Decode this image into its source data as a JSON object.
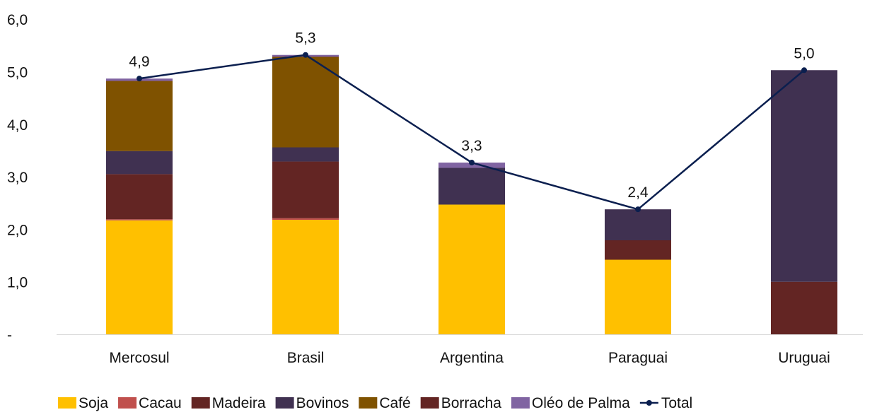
{
  "chart_data": {
    "type": "bar",
    "stacked": true,
    "categories": [
      "Mercosul",
      "Brasil",
      "Argentina",
      "Paraguai",
      "Uruguai"
    ],
    "ylim": [
      0,
      6
    ],
    "yticks": [
      {
        "value": 0,
        "label": "-"
      },
      {
        "value": 1,
        "label": "1,0"
      },
      {
        "value": 2,
        "label": "2,0"
      },
      {
        "value": 3,
        "label": "3,0"
      },
      {
        "value": 4,
        "label": "4,0"
      },
      {
        "value": 5,
        "label": "5,0"
      },
      {
        "value": 6,
        "label": "6,0"
      }
    ],
    "series": [
      {
        "name": "Soja",
        "color": "#FFC000",
        "values": [
          2.17,
          2.18,
          2.47,
          1.42,
          0
        ]
      },
      {
        "name": "Cacau",
        "color": "#C0504D",
        "values": [
          0.02,
          0.03,
          0,
          0,
          0
        ]
      },
      {
        "name": "Madeira",
        "color": "#632523",
        "values": [
          0.86,
          1.08,
          0,
          0.37,
          1.0
        ]
      },
      {
        "name": "Bovinos",
        "color": "#403151",
        "values": [
          0.44,
          0.27,
          0.7,
          0.59,
          4.03
        ]
      },
      {
        "name": "Café",
        "color": "#7F5200",
        "values": [
          1.33,
          1.72,
          0,
          0,
          0
        ]
      },
      {
        "name": "Borracha",
        "color": "#632523",
        "values": [
          0.01,
          0.01,
          0,
          0,
          0
        ]
      },
      {
        "name": "Oléo de Palma",
        "color": "#8064A2",
        "values": [
          0.04,
          0.03,
          0.1,
          0,
          0
        ]
      }
    ],
    "line": {
      "name": "Total",
      "color": "#0B1F4F",
      "values": [
        4.87,
        5.32,
        3.27,
        2.38,
        5.03
      ],
      "labels": [
        "4,9",
        "5,3",
        "3,3",
        "2,4",
        "5,0"
      ]
    },
    "grid": false,
    "legend": "bottom"
  }
}
